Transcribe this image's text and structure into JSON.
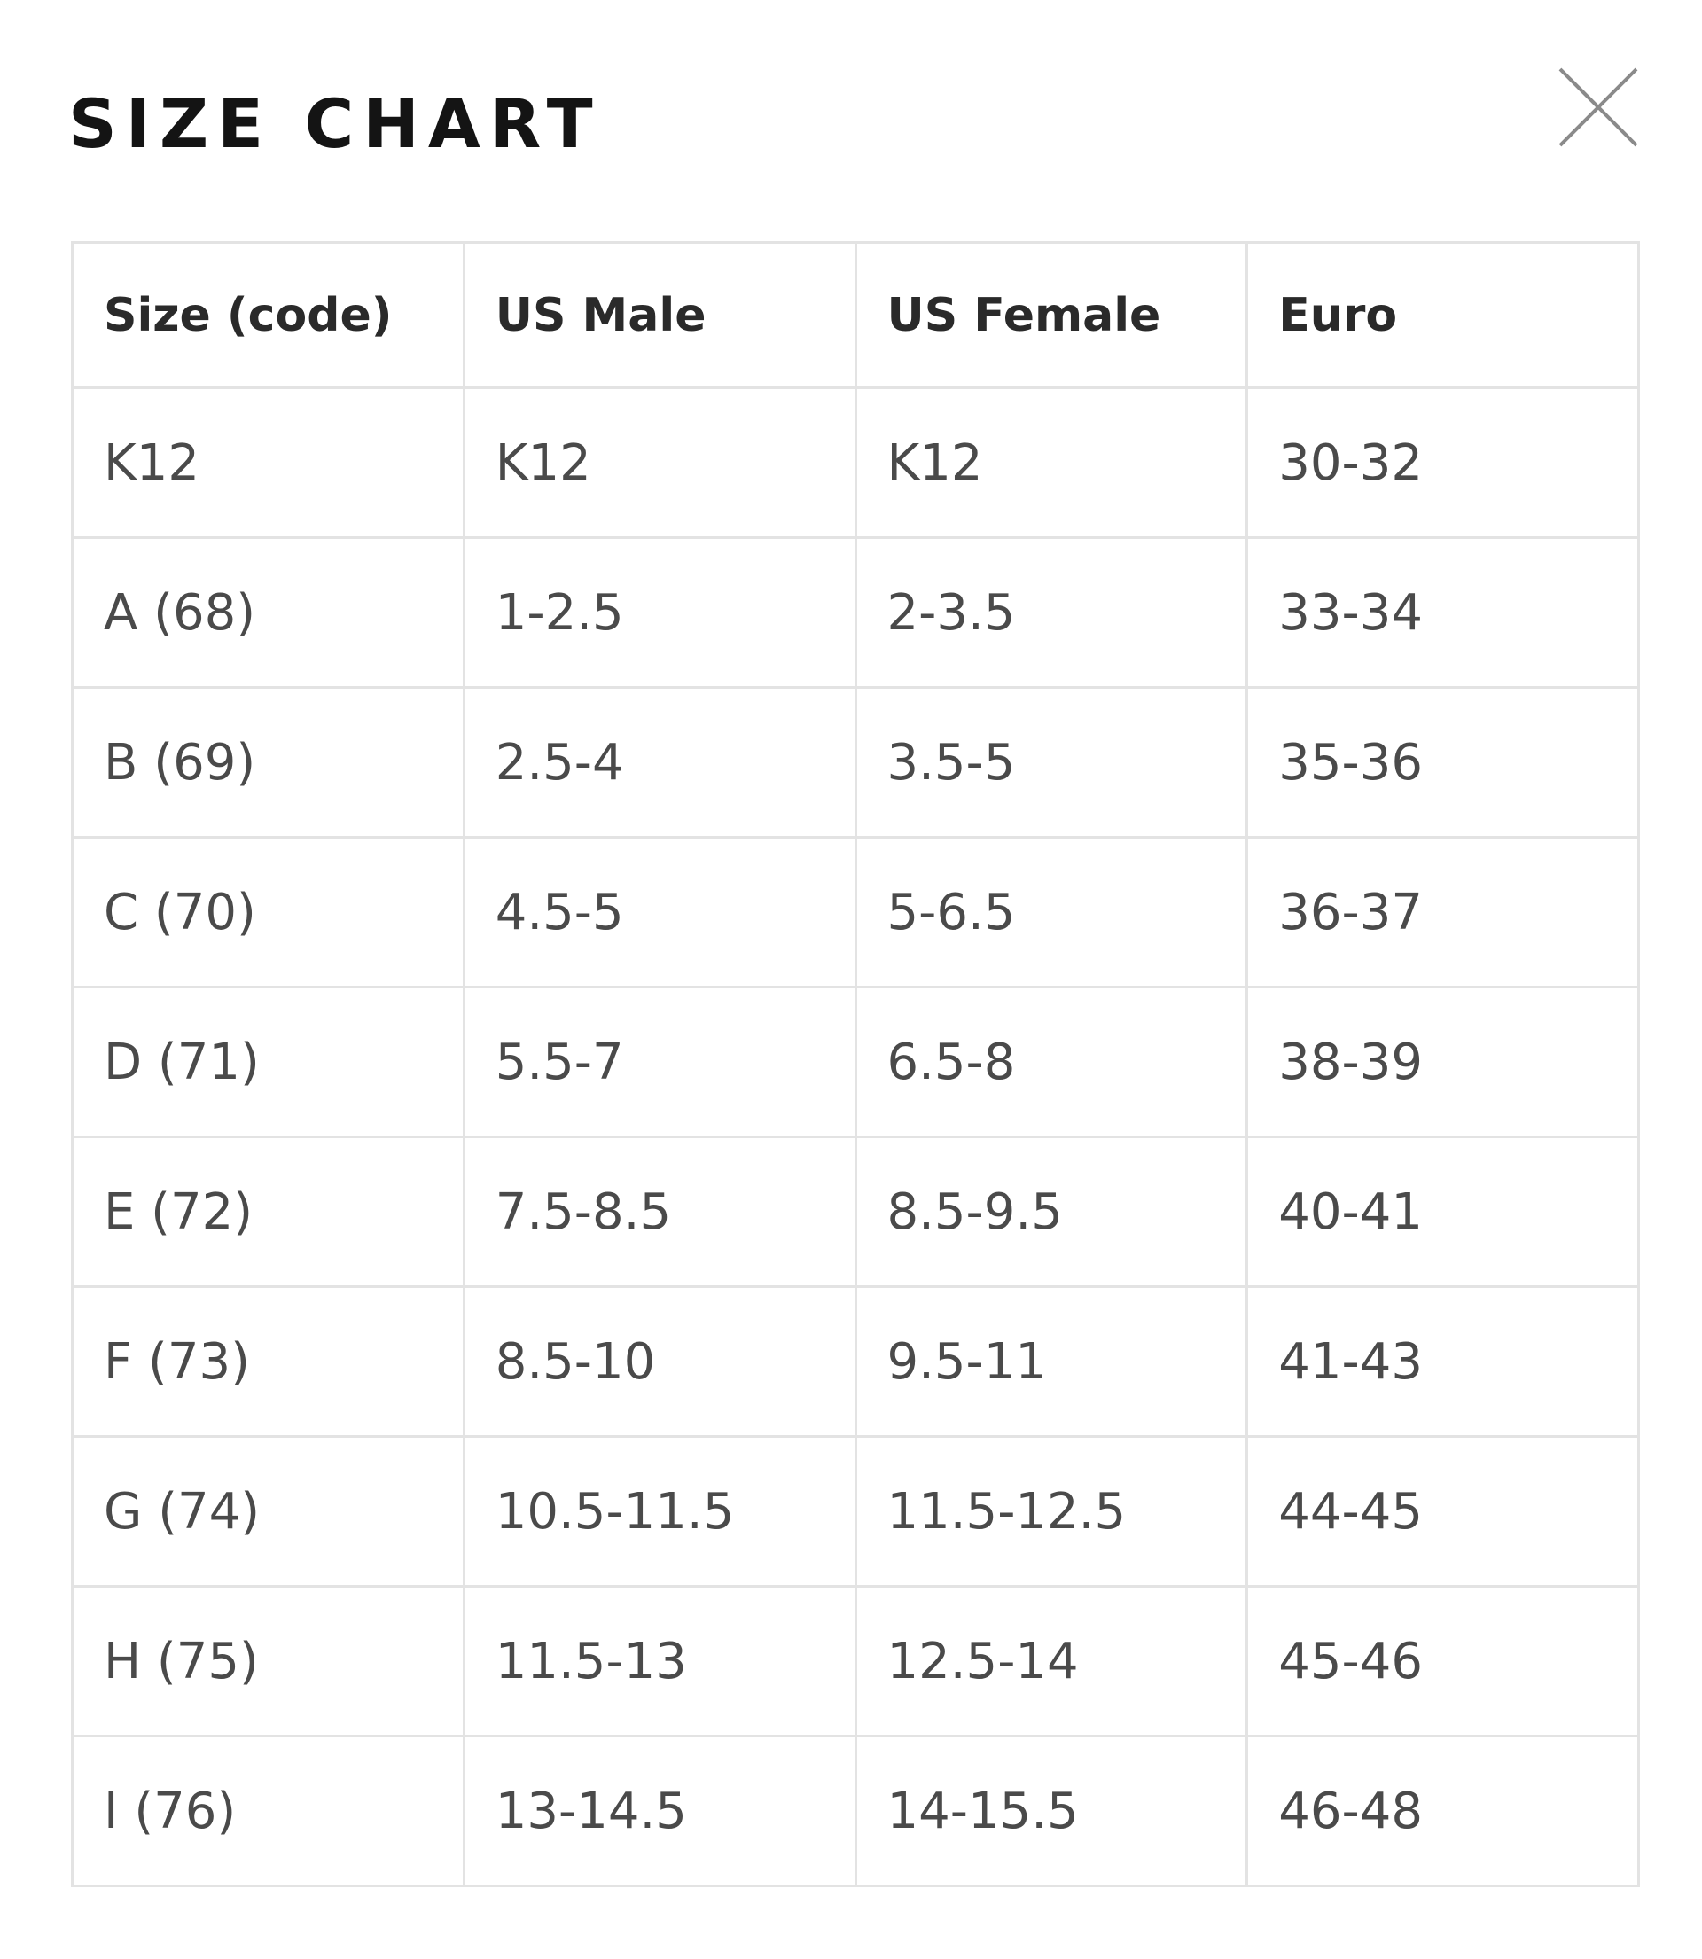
{
  "modal": {
    "title": "SIZE CHART",
    "close_icon": "close-x-icon"
  },
  "table": {
    "headers": [
      "Size (code)",
      "US Male",
      "US Female",
      "Euro"
    ],
    "rows": [
      [
        "K12",
        "K12",
        "K12",
        "30-32"
      ],
      [
        "A (68)",
        "1-2.5",
        "2-3.5",
        "33-34"
      ],
      [
        "B (69)",
        "2.5-4",
        "3.5-5",
        "35-36"
      ],
      [
        "C (70)",
        "4.5-5",
        "5-6.5",
        "36-37"
      ],
      [
        "D (71)",
        "5.5-7",
        "6.5-8",
        "38-39"
      ],
      [
        "E (72)",
        "7.5-8.5",
        "8.5-9.5",
        "40-41"
      ],
      [
        "F (73)",
        "8.5-10",
        "9.5-11",
        "41-43"
      ],
      [
        "G (74)",
        "10.5-11.5",
        "11.5-12.5",
        "44-45"
      ],
      [
        "H (75)",
        "11.5-13",
        "12.5-14",
        "45-46"
      ],
      [
        "I (76)",
        "13-14.5",
        "14-15.5",
        "46-48"
      ]
    ]
  },
  "colors": {
    "title": "#141414",
    "grid_line": "#e3e3e3",
    "cell_text": "#4a4a4a",
    "header_text": "#2a2a2a",
    "close_icon": "#8a8a8a"
  }
}
